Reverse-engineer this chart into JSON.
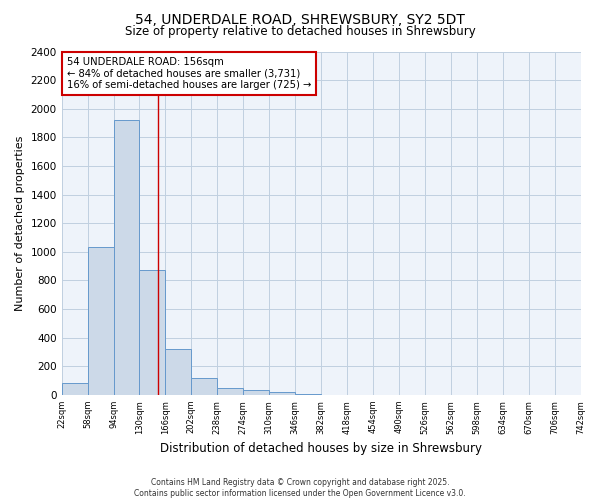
{
  "title_line1": "54, UNDERDALE ROAD, SHREWSBURY, SY2 5DT",
  "title_line2": "Size of property relative to detached houses in Shrewsbury",
  "xlabel": "Distribution of detached houses by size in Shrewsbury",
  "ylabel": "Number of detached properties",
  "bin_edges": [
    22,
    58,
    94,
    130,
    166,
    202,
    238,
    274,
    310,
    346,
    382,
    418,
    454,
    490,
    526,
    562,
    598,
    634,
    670,
    706,
    742
  ],
  "bar_heights": [
    85,
    1035,
    1920,
    875,
    320,
    115,
    50,
    35,
    20,
    5,
    3,
    2,
    2,
    1,
    1,
    1,
    0,
    0,
    0,
    0
  ],
  "bar_color": "#ccd9e8",
  "bar_edge_color": "#6699cc",
  "grid_color": "#c0cfe0",
  "bg_color": "#ffffff",
  "plot_bg_color": "#eef3fa",
  "property_size": 156,
  "vline_color": "#cc0000",
  "annotation_text": "54 UNDERDALE ROAD: 156sqm\n← 84% of detached houses are smaller (3,731)\n16% of semi-detached houses are larger (725) →",
  "annotation_box_color": "#ffffff",
  "annotation_box_edge": "#cc0000",
  "ylim": [
    0,
    2400
  ],
  "yticks": [
    0,
    200,
    400,
    600,
    800,
    1000,
    1200,
    1400,
    1600,
    1800,
    2000,
    2200,
    2400
  ],
  "footnote": "Contains HM Land Registry data © Crown copyright and database right 2025.\nContains public sector information licensed under the Open Government Licence v3.0."
}
